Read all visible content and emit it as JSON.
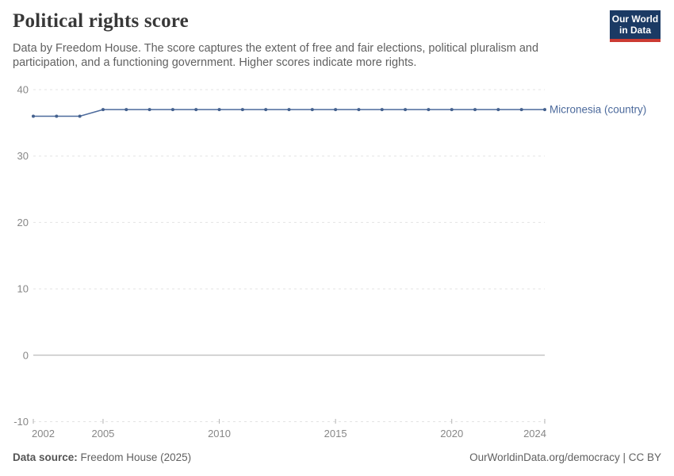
{
  "header": {
    "title": "Political rights score",
    "subtitle_lines": [
      "Data by Freedom House. The score captures the extent of free and fair elections, political pluralism and",
      "participation, and a functioning government. Higher scores indicate more rights."
    ],
    "logo": {
      "line1": "Our World",
      "line2": "in Data",
      "bg": "#1b3a64",
      "accent": "#cc3b33"
    }
  },
  "chart_data": {
    "type": "line",
    "title": "Political rights score",
    "xlabel": "",
    "ylabel": "",
    "xlim": [
      2002,
      2024
    ],
    "ylim": [
      -10,
      40
    ],
    "xticks": [
      2002,
      2005,
      2010,
      2015,
      2020,
      2024
    ],
    "yticks": [
      40,
      30,
      20,
      10,
      0,
      -10
    ],
    "grid": "horizontal dashed, solid line at 0",
    "legend_position": "label at end of line",
    "series": [
      {
        "name": "Micronesia (country)",
        "color": "#4C6A9C",
        "x": [
          2002,
          2003,
          2004,
          2005,
          2006,
          2007,
          2008,
          2009,
          2010,
          2011,
          2012,
          2013,
          2014,
          2015,
          2016,
          2017,
          2018,
          2019,
          2020,
          2021,
          2022,
          2023,
          2024
        ],
        "values": [
          36,
          36,
          36,
          37,
          37,
          37,
          37,
          37,
          37,
          37,
          37,
          37,
          37,
          37,
          37,
          37,
          37,
          37,
          37,
          37,
          37,
          37,
          37
        ]
      }
    ]
  },
  "footer": {
    "source_label": "Data source:",
    "source_value": " Freedom House (2025)",
    "credit": "OurWorldinData.org/democracy | CC BY"
  },
  "colors": {
    "grid": "#e3e3e3",
    "zero_line": "#a9a9a9",
    "tick_mark": "#b3b3b3",
    "axis_text": "#878787",
    "line": "#4C6A9C",
    "point": "#44618e"
  }
}
